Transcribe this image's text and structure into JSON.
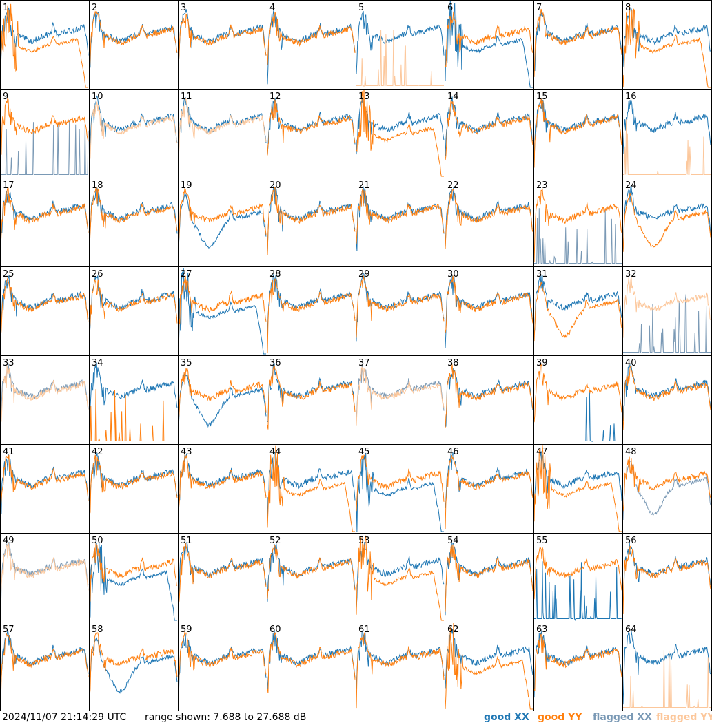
{
  "chart_data": {
    "type": "line",
    "panels": [
      {
        "label": "1",
        "xx": "good",
        "yy": "good",
        "yy_shape": "dropoff",
        "xx_shape": "normal"
      },
      {
        "label": "2",
        "xx": "good",
        "yy": "good"
      },
      {
        "label": "3",
        "xx": "good",
        "yy": "good"
      },
      {
        "label": "4",
        "xx": "good",
        "yy": "good"
      },
      {
        "label": "5",
        "xx": "good",
        "yy": "flagged",
        "yy_shape": "low"
      },
      {
        "label": "6",
        "xx": "good",
        "yy": "good",
        "xx_shape": "dropoff"
      },
      {
        "label": "7",
        "xx": "good",
        "yy": "good"
      },
      {
        "label": "8",
        "xx": "good",
        "yy": "good",
        "yy_shape": "dropoff"
      },
      {
        "label": "9",
        "xx": "flagged",
        "yy": "good",
        "xx_shape": "low"
      },
      {
        "label": "10",
        "xx": "good",
        "yy": "flagged"
      },
      {
        "label": "11",
        "xx": "good",
        "yy": "flagged"
      },
      {
        "label": "12",
        "xx": "good",
        "yy": "good"
      },
      {
        "label": "13",
        "xx": "good",
        "yy": "good",
        "yy_shape": "dropoff"
      },
      {
        "label": "14",
        "xx": "good",
        "yy": "good"
      },
      {
        "label": "15",
        "xx": "good",
        "yy": "good"
      },
      {
        "label": "16",
        "xx": "good",
        "yy": "flagged",
        "yy_shape": "low"
      },
      {
        "label": "17",
        "xx": "good",
        "yy": "good"
      },
      {
        "label": "18",
        "xx": "good",
        "yy": "good"
      },
      {
        "label": "19",
        "xx": "good",
        "yy": "good",
        "xx_shape": "dip"
      },
      {
        "label": "20",
        "xx": "good",
        "yy": "good"
      },
      {
        "label": "21",
        "xx": "good",
        "yy": "good"
      },
      {
        "label": "22",
        "xx": "good",
        "yy": "good"
      },
      {
        "label": "23",
        "xx": "flagged",
        "yy": "good",
        "xx_shape": "low"
      },
      {
        "label": "24",
        "xx": "good",
        "yy": "good",
        "yy_shape": "dip"
      },
      {
        "label": "25",
        "xx": "good",
        "yy": "good"
      },
      {
        "label": "26",
        "xx": "good",
        "yy": "good"
      },
      {
        "label": "27",
        "xx": "good",
        "yy": "good",
        "xx_shape": "dropoff"
      },
      {
        "label": "28",
        "xx": "good",
        "yy": "good"
      },
      {
        "label": "29",
        "xx": "good",
        "yy": "good"
      },
      {
        "label": "30",
        "xx": "good",
        "yy": "good"
      },
      {
        "label": "31",
        "xx": "good",
        "yy": "good",
        "yy_shape": "dip"
      },
      {
        "label": "32",
        "xx": "flagged",
        "yy": "flagged",
        "xx_shape": "low"
      },
      {
        "label": "33",
        "xx": "flagged",
        "yy": "flagged"
      },
      {
        "label": "34",
        "xx": "good",
        "yy": "good",
        "yy_shape": "low"
      },
      {
        "label": "35",
        "xx": "good",
        "yy": "good",
        "xx_shape": "dip"
      },
      {
        "label": "36",
        "xx": "good",
        "yy": "good"
      },
      {
        "label": "37",
        "xx": "flagged",
        "yy": "flagged"
      },
      {
        "label": "38",
        "xx": "good",
        "yy": "good"
      },
      {
        "label": "39",
        "xx": "good",
        "yy": "good",
        "xx_shape": "low"
      },
      {
        "label": "40",
        "xx": "good",
        "yy": "good"
      },
      {
        "label": "41",
        "xx": "good",
        "yy": "good"
      },
      {
        "label": "42",
        "xx": "good",
        "yy": "good"
      },
      {
        "label": "43",
        "xx": "good",
        "yy": "good"
      },
      {
        "label": "44",
        "xx": "good",
        "yy": "good",
        "yy_shape": "dropoff"
      },
      {
        "label": "45",
        "xx": "good",
        "yy": "good",
        "xx_shape": "dropoff"
      },
      {
        "label": "46",
        "xx": "good",
        "yy": "good"
      },
      {
        "label": "47",
        "xx": "good",
        "yy": "good",
        "yy_shape": "dropoff"
      },
      {
        "label": "48",
        "xx": "flagged",
        "yy": "good",
        "xx_shape": "dip"
      },
      {
        "label": "49",
        "xx": "flagged",
        "yy": "flagged"
      },
      {
        "label": "50",
        "xx": "good",
        "yy": "good",
        "xx_shape": "dropoff"
      },
      {
        "label": "51",
        "xx": "good",
        "yy": "good"
      },
      {
        "label": "52",
        "xx": "good",
        "yy": "good"
      },
      {
        "label": "53",
        "xx": "good",
        "yy": "good",
        "yy_shape": "dropoff"
      },
      {
        "label": "54",
        "xx": "good",
        "yy": "good"
      },
      {
        "label": "55",
        "xx": "good",
        "yy": "good",
        "xx_shape": "low"
      },
      {
        "label": "56",
        "xx": "good",
        "yy": "good"
      },
      {
        "label": "57",
        "xx": "good",
        "yy": "good"
      },
      {
        "label": "58",
        "xx": "good",
        "yy": "good",
        "xx_shape": "dip"
      },
      {
        "label": "59",
        "xx": "good",
        "yy": "good"
      },
      {
        "label": "60",
        "xx": "good",
        "yy": "good"
      },
      {
        "label": "61",
        "xx": "good",
        "yy": "good"
      },
      {
        "label": "62",
        "xx": "good",
        "yy": "good",
        "yy_shape": "dropoff"
      },
      {
        "label": "63",
        "xx": "good",
        "yy": "good"
      },
      {
        "label": "64",
        "xx": "good",
        "yy": "flagged",
        "yy_shape": "low"
      }
    ],
    "range_db": [
      7.688,
      27.688
    ],
    "grid": false,
    "legend_position": "bottom-right"
  },
  "footer": {
    "timestamp": "2024/11/07 21:14:29 UTC",
    "range_text": "range shown: 7.688 to 27.688 dB"
  },
  "legend": [
    {
      "label": "good XX",
      "color": "#1f77b4"
    },
    {
      "label": "good YY",
      "color": "#ff7f0e"
    },
    {
      "label": "flagged XX",
      "color": "#7a99b5"
    },
    {
      "label": "flagged YY",
      "color": "#fcc79b"
    }
  ],
  "colors": {
    "good_xx": "#1f77b4",
    "good_yy": "#ff7f0e",
    "flagged_xx": "#7a99b5",
    "flagged_yy": "#fcc79b"
  }
}
